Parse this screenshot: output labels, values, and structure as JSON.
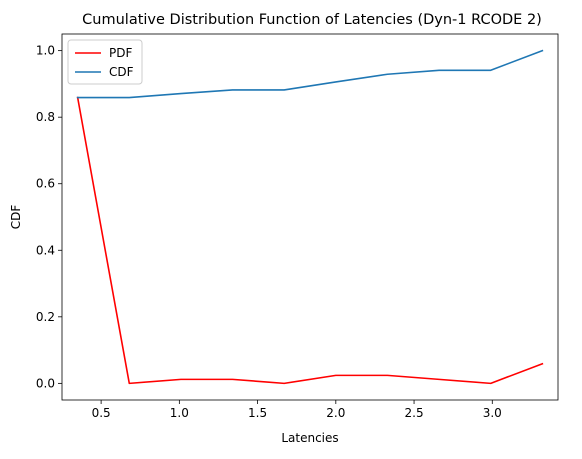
{
  "chart_data": {
    "type": "line",
    "title": "Cumulative Distribution Function of Latencies (Dyn-1 RCODE 2)",
    "xlabel": "Latencies",
    "ylabel": "CDF",
    "xlim": [
      0.25,
      3.42
    ],
    "ylim": [
      -0.05,
      1.05
    ],
    "xticks": [
      0.5,
      1.0,
      1.5,
      2.0,
      2.5,
      3.0
    ],
    "xtick_labels": [
      "0.5",
      "1.0",
      "1.5",
      "2.0",
      "2.5",
      "3.0"
    ],
    "yticks": [
      0.0,
      0.2,
      0.4,
      0.6,
      0.8,
      1.0
    ],
    "ytick_labels": [
      "0.0",
      "0.2",
      "0.4",
      "0.6",
      "0.8",
      "1.0"
    ],
    "grid": false,
    "legend_position": "top-left",
    "x": [
      0.35,
      0.68,
      1.01,
      1.34,
      1.67,
      2.0,
      2.33,
      2.66,
      2.99,
      3.32
    ],
    "series": [
      {
        "name": "PDF",
        "color": "#ff0000",
        "values": [
          0.859,
          0.0,
          0.012,
          0.012,
          0.0,
          0.024,
          0.024,
          0.012,
          0.0,
          0.059
        ]
      },
      {
        "name": "CDF",
        "color": "#1f77b4",
        "values": [
          0.859,
          0.859,
          0.871,
          0.882,
          0.882,
          0.906,
          0.929,
          0.941,
          0.941,
          1.0
        ]
      }
    ]
  }
}
